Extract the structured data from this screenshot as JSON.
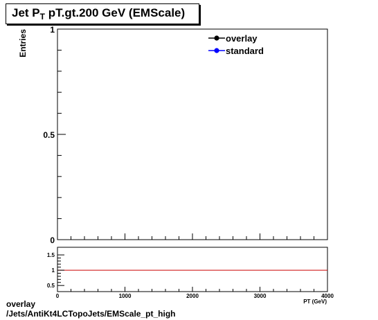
{
  "title": {
    "prefix": "Jet P",
    "subscript": "T",
    "suffix": " pT.gt.200 GeV (EMScale)"
  },
  "footer": {
    "line1": "overlay",
    "line2": "/Jets/AntiKt4LCTopoJets/EMScale_pt_high"
  },
  "colors": {
    "overlay": "#000000",
    "standard": "#0000ff",
    "ratio_line": "#cc0000"
  },
  "chart_data": [
    {
      "type": "line",
      "ylabel": "Entries",
      "xlabel": "P_T (GeV)",
      "xlim": [
        0,
        4000
      ],
      "ylim": [
        0,
        1
      ],
      "y_ticks": [
        0,
        0.5,
        1
      ],
      "y_tick_labels": [
        "0",
        "0.5",
        "1"
      ],
      "grid": false,
      "legend_position": "top-right",
      "series": [
        {
          "name": "overlay",
          "x": [],
          "values": []
        },
        {
          "name": "standard",
          "x": [],
          "values": []
        }
      ]
    },
    {
      "type": "line",
      "xlabel": "P_T (GeV)",
      "xlim": [
        0,
        4000
      ],
      "ylim": [
        0.3,
        1.75
      ],
      "x_ticks": [
        0,
        1000,
        2000,
        3000,
        4000
      ],
      "x_tick_labels": [
        "0",
        "1000",
        "2000",
        "3000",
        "4000"
      ],
      "y_ticks": [
        0.5,
        1,
        1.5
      ],
      "y_tick_labels": [
        "0.5",
        "1",
        "1.5"
      ],
      "reference_line": 1,
      "grid": false
    }
  ]
}
